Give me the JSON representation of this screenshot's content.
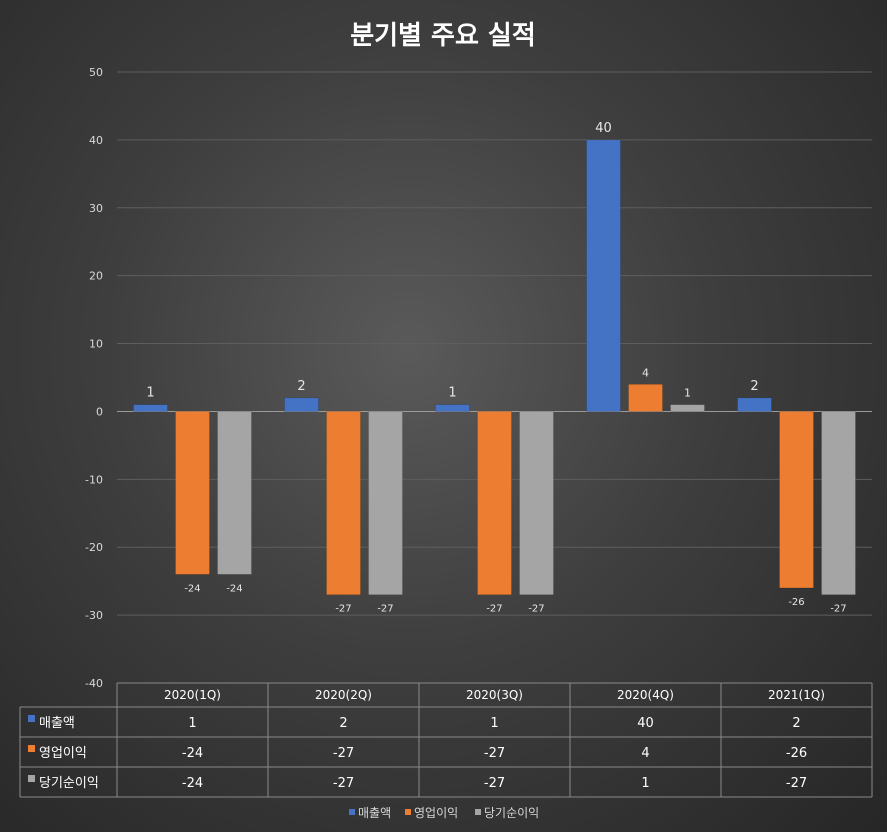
{
  "chart_data": {
    "type": "bar",
    "title": "분기별 주요 실적",
    "categories": [
      "2020(1Q)",
      "2020(2Q)",
      "2020(3Q)",
      "2020(4Q)",
      "2021(1Q)"
    ],
    "series": [
      {
        "name": "매출액",
        "values": [
          1,
          2,
          1,
          40,
          2
        ],
        "color": "#4472c4"
      },
      {
        "name": "영업이익",
        "values": [
          -24,
          -27,
          -27,
          4,
          -26
        ],
        "color": "#ed7d31"
      },
      {
        "name": "당기순이익",
        "values": [
          -24,
          -27,
          -27,
          1,
          -27
        ],
        "color": "#a5a5a5"
      }
    ],
    "ylim": [
      -40,
      50
    ],
    "yticks": [
      50,
      40,
      30,
      20,
      10,
      0,
      -10,
      -20,
      -30,
      -40
    ],
    "grid": true,
    "data_table": true,
    "legend_position": "bottom"
  }
}
